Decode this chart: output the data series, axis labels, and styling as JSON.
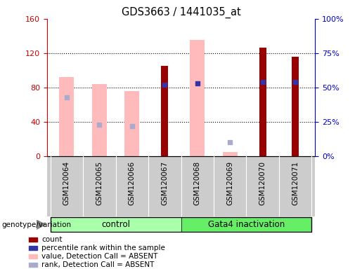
{
  "title": "GDS3663 / 1441035_at",
  "samples": [
    "GSM120064",
    "GSM120065",
    "GSM120066",
    "GSM120067",
    "GSM120068",
    "GSM120069",
    "GSM120070",
    "GSM120071"
  ],
  "control_indices": [
    0,
    1,
    2,
    3
  ],
  "gata4_indices": [
    4,
    5,
    6,
    7
  ],
  "red_bars": [
    null,
    null,
    null,
    105,
    null,
    null,
    126,
    116
  ],
  "blue_squares_pct": [
    null,
    null,
    null,
    52,
    53,
    null,
    54,
    54
  ],
  "pink_bars": [
    92,
    84,
    76,
    null,
    135,
    5,
    null,
    null
  ],
  "light_blue_squares_pct": [
    43,
    23,
    22,
    null,
    null,
    10,
    null,
    null
  ],
  "left_ylim": [
    0,
    160
  ],
  "right_ylim": [
    0,
    100
  ],
  "left_yticks": [
    0,
    40,
    80,
    120,
    160
  ],
  "right_yticks": [
    0,
    25,
    50,
    75,
    100
  ],
  "right_yticklabels": [
    "0%",
    "25%",
    "50%",
    "75%",
    "100%"
  ],
  "left_tick_color": "#cc0000",
  "right_tick_color": "#0000cc",
  "pink_color": "#ffbbbb",
  "light_blue_color": "#aaaacc",
  "red_color": "#990000",
  "blue_color": "#3333aa",
  "pink_bar_width": 0.45,
  "red_bar_width": 0.22,
  "control_color": "#aaffaa",
  "gata4_color": "#66ee66",
  "xtick_bg": "#cccccc",
  "legend": [
    {
      "label": "count",
      "color": "#990000"
    },
    {
      "label": "percentile rank within the sample",
      "color": "#3333aa"
    },
    {
      "label": "value, Detection Call = ABSENT",
      "color": "#ffbbbb"
    },
    {
      "label": "rank, Detection Call = ABSENT",
      "color": "#aaaacc"
    }
  ]
}
